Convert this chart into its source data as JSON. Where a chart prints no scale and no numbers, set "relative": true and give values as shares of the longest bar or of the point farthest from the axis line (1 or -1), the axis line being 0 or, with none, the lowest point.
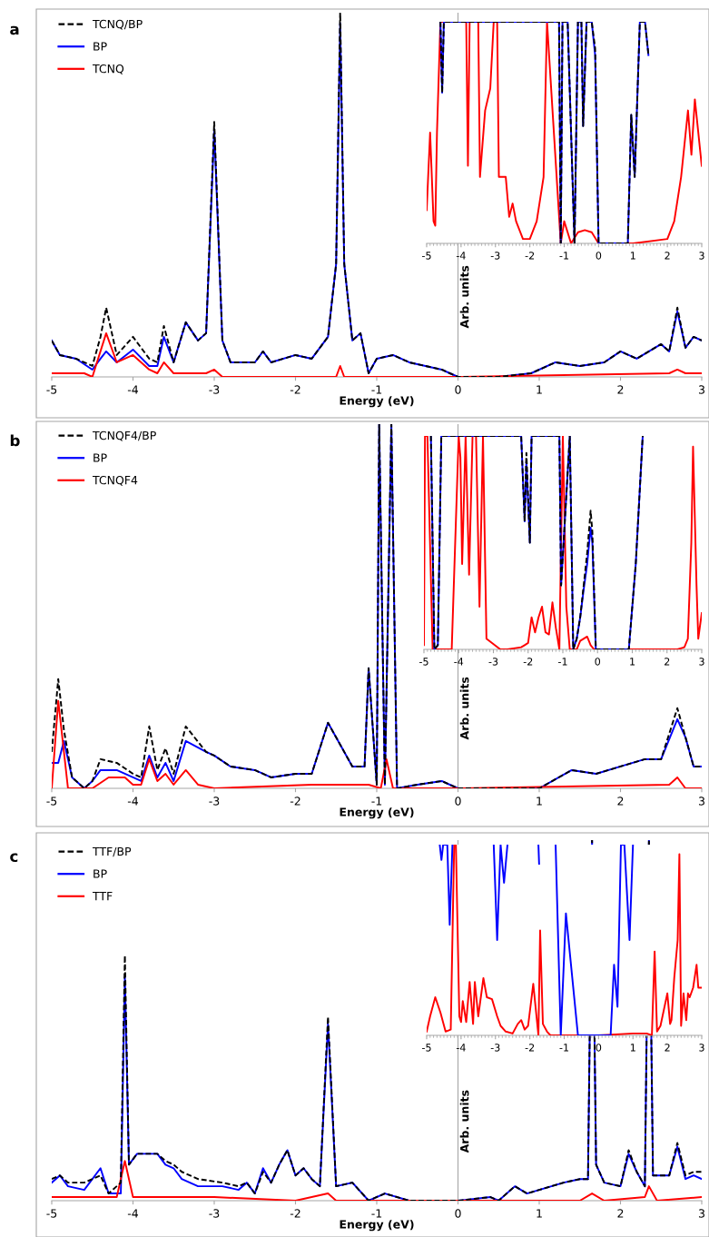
{
  "chart_data": [
    {
      "type": "line",
      "relative": true,
      "xlabel": "Energy (eV)",
      "ylabel": "Arb. units",
      "annotations": [
        "a"
      ],
      "xlim": [
        -5,
        3
      ],
      "xticks": [
        -5,
        -4,
        -3,
        -2,
        -1,
        0,
        1,
        2,
        3
      ],
      "tick_labels": "x",
      "ref_lines": [
        {
          "axis": "x",
          "value": 0,
          "color": "#a6a6a6"
        }
      ],
      "legend": "top left",
      "grid": false,
      "marker": "none",
      "series": [
        {
          "name": "TCNQ/BP",
          "color": "#000000",
          "line_style": "dashed",
          "x": [
            -5,
            -4.9,
            -4.7,
            -4.5,
            -4.4,
            -4.33,
            -4.2,
            -4.0,
            -3.8,
            -3.7,
            -3.62,
            -3.5,
            -3.35,
            -3.2,
            -3.1,
            -3.0,
            -2.9,
            -2.8,
            -2.5,
            -2.4,
            -2.3,
            -2.0,
            -1.8,
            -1.6,
            -1.5,
            -1.45,
            -1.4,
            -1.3,
            -1.2,
            -1.1,
            -1.0,
            -0.8,
            -0.6,
            -0.4,
            -0.2,
            -0.1,
            0,
            0.5,
            0.9,
            1.2,
            1.5,
            1.8,
            2.0,
            2.2,
            2.5,
            2.6,
            2.7,
            2.8,
            2.9,
            3.0
          ],
          "values": [
            0.1,
            0.06,
            0.05,
            0.03,
            0.11,
            0.19,
            0.06,
            0.11,
            0.05,
            0.04,
            0.14,
            0.04,
            0.15,
            0.1,
            0.12,
            0.7,
            0.1,
            0.04,
            0.04,
            0.07,
            0.04,
            0.06,
            0.05,
            0.11,
            0.31,
            1.0,
            0.31,
            0.1,
            0.12,
            0.01,
            0.05,
            0.06,
            0.04,
            0.03,
            0.02,
            0.01,
            0,
            0,
            0.01,
            0.04,
            0.03,
            0.04,
            0.07,
            0.05,
            0.09,
            0.07,
            0.19,
            0.08,
            0.11,
            0.1
          ]
        },
        {
          "name": "BP",
          "color": "#0000ff",
          "line_style": "solid",
          "x": [
            -5,
            -4.9,
            -4.7,
            -4.5,
            -4.4,
            -4.33,
            -4.2,
            -4.0,
            -3.8,
            -3.7,
            -3.62,
            -3.5,
            -3.35,
            -3.2,
            -3.1,
            -3.0,
            -2.9,
            -2.8,
            -2.5,
            -2.4,
            -2.3,
            -2.0,
            -1.8,
            -1.6,
            -1.5,
            -1.45,
            -1.4,
            -1.3,
            -1.2,
            -1.1,
            -1.0,
            -0.8,
            -0.6,
            -0.4,
            -0.2,
            -0.1,
            0,
            0.5,
            0.9,
            1.2,
            1.5,
            1.8,
            2.0,
            2.2,
            2.5,
            2.6,
            2.7,
            2.8,
            2.9,
            3.0
          ],
          "values": [
            0.1,
            0.06,
            0.05,
            0.02,
            0.05,
            0.07,
            0.04,
            0.075,
            0.03,
            0.03,
            0.11,
            0.04,
            0.15,
            0.1,
            0.12,
            0.68,
            0.1,
            0.04,
            0.04,
            0.07,
            0.04,
            0.06,
            0.05,
            0.11,
            0.31,
            0.97,
            0.31,
            0.1,
            0.12,
            0.01,
            0.05,
            0.06,
            0.04,
            0.03,
            0.02,
            0.01,
            0,
            0,
            0.01,
            0.04,
            0.03,
            0.04,
            0.07,
            0.05,
            0.09,
            0.07,
            0.18,
            0.08,
            0.11,
            0.1
          ]
        },
        {
          "name": "TCNQ",
          "color": "#ff0000",
          "line_style": "solid",
          "x": [
            -5,
            -4.6,
            -4.5,
            -4.33,
            -4.2,
            -4.0,
            -3.8,
            -3.7,
            -3.62,
            -3.5,
            -3.1,
            -3.0,
            -2.9,
            -1.5,
            -1.45,
            -1.4,
            0,
            2.6,
            2.7,
            2.8,
            3.0
          ],
          "values": [
            0.01,
            0.01,
            0.0,
            0.12,
            0.04,
            0.06,
            0.02,
            0.01,
            0.04,
            0.01,
            0.01,
            0.02,
            0.0,
            0.0,
            0.03,
            0.0,
            0.0,
            0.01,
            0.02,
            0.01,
            0.01
          ]
        }
      ]
    },
    {
      "type": "line",
      "relative": true,
      "xlim": [
        -5,
        3
      ],
      "xticks": [
        -5,
        -4,
        -3,
        -2,
        -1,
        0,
        1,
        2,
        3
      ],
      "tick_labels": "x",
      "grid": false,
      "marker": "none",
      "series": [
        {
          "color": "#ff0000",
          "line_style": "solid",
          "x": [
            -5,
            -4.9,
            -4.8,
            -4.75,
            -4.7,
            -4.6,
            -3.85,
            -3.8,
            -3.75,
            -3.5,
            -3.45,
            -3.3,
            -3.15,
            -3.05,
            -2.95,
            -2.9,
            -2.85,
            -2.7,
            -2.6,
            -2.5,
            -2.4,
            -2.2,
            -2.0,
            -1.8,
            -1.6,
            -1.5,
            -1.1,
            -1.0,
            -0.8,
            -0.6,
            -0.4,
            -0.2,
            0,
            1.0,
            2.0,
            2.2,
            2.4,
            2.6,
            2.7,
            2.8,
            3.0
          ],
          "values": [
            0.15,
            0.5,
            0.1,
            0.08,
            0.5,
            1.0,
            1.0,
            0.35,
            1.0,
            1.0,
            0.3,
            0.6,
            0.7,
            1.0,
            1.0,
            0.3,
            0.3,
            0.3,
            0.12,
            0.18,
            0.1,
            0.02,
            0.02,
            0.1,
            0.3,
            1.0,
            0.0,
            0.1,
            0.0,
            0.05,
            0.06,
            0.05,
            0.0,
            0.0,
            0.02,
            0.1,
            0.3,
            0.6,
            0.4,
            0.65,
            0.35
          ]
        },
        {
          "color": "#000000",
          "line_style": "dashed",
          "x": [
            -4.6,
            -4.55,
            -4.5,
            -1.15,
            -1.1,
            -1.05,
            -0.9,
            -0.7,
            -0.6,
            -0.5,
            -0.45,
            -0.35,
            -0.2,
            -0.1,
            0,
            0.85,
            0.95,
            1.05,
            1.2,
            1.35,
            1.45
          ],
          "values": [
            1.0,
            0.68,
            1.0,
            1.0,
            0.0,
            1.0,
            1.0,
            0.0,
            1.0,
            1.0,
            0.53,
            1.0,
            1.0,
            0.88,
            0.0,
            0.0,
            0.58,
            0.3,
            1.0,
            1.0,
            0.85
          ]
        },
        {
          "color": "#0000ff",
          "line_style": "solid",
          "x": [
            -4.6,
            -4.55,
            -4.5,
            -1.15,
            -1.1,
            -1.05,
            -0.9,
            -0.7,
            -0.6,
            -0.5,
            -0.45,
            -0.35,
            -0.2,
            -0.1,
            0,
            0.85,
            0.95,
            1.05,
            1.2,
            1.35,
            1.45
          ],
          "values": [
            1.0,
            0.68,
            1.0,
            1.0,
            0.0,
            1.0,
            1.0,
            0.0,
            1.0,
            1.0,
            0.53,
            1.0,
            1.0,
            0.85,
            0.0,
            0.0,
            0.58,
            0.3,
            1.0,
            1.0,
            0.85
          ]
        }
      ]
    },
    {
      "type": "line",
      "relative": true,
      "xlabel": "Energy (eV)",
      "ylabel": "Arb. units",
      "annotations": [
        "b"
      ],
      "xlim": [
        -5,
        3
      ],
      "xticks": [
        -5,
        -4,
        -3,
        -2,
        -1,
        0,
        1,
        2,
        3
      ],
      "tick_labels": "x",
      "ref_lines": [
        {
          "axis": "x",
          "value": 0,
          "color": "#a6a6a6"
        }
      ],
      "legend": "top left",
      "grid": false,
      "marker": "none",
      "series": [
        {
          "name": "TCNQF4/BP",
          "color": "#000000",
          "line_style": "dashed",
          "x": [
            -5,
            -4.92,
            -4.85,
            -4.75,
            -4.6,
            -4.5,
            -4.4,
            -4.2,
            -4.0,
            -3.9,
            -3.8,
            -3.7,
            -3.6,
            -3.5,
            -3.35,
            -3.1,
            -3.0,
            -2.8,
            -2.5,
            -2.3,
            -2.0,
            -1.8,
            -1.6,
            -1.3,
            -1.15,
            -1.1,
            -1.0,
            -0.97,
            -0.9,
            -0.82,
            -0.75,
            -0.5,
            -0.2,
            -0.1,
            0,
            1.0,
            1.4,
            1.7,
            2.0,
            2.3,
            2.5,
            2.7,
            2.8,
            2.9,
            3.0
          ],
          "values": [
            0.1,
            0.3,
            0.16,
            0.03,
            0.0,
            0.02,
            0.08,
            0.07,
            0.04,
            0.03,
            0.17,
            0.05,
            0.11,
            0.04,
            0.17,
            0.1,
            0.09,
            0.06,
            0.05,
            0.03,
            0.04,
            0.04,
            0.18,
            0.06,
            0.06,
            0.33,
            0.01,
            1.0,
            0.01,
            1.0,
            0.0,
            0.01,
            0.02,
            0.01,
            0.0,
            0.0,
            0.05,
            0.04,
            0.06,
            0.08,
            0.08,
            0.22,
            0.14,
            0.06,
            0.06
          ]
        },
        {
          "name": "BP",
          "color": "#0000ff",
          "line_style": "solid",
          "x": [
            -5,
            -4.92,
            -4.85,
            -4.75,
            -4.6,
            -4.5,
            -4.4,
            -4.2,
            -4.0,
            -3.9,
            -3.8,
            -3.7,
            -3.6,
            -3.5,
            -3.35,
            -3.1,
            -3.0,
            -2.8,
            -2.5,
            -2.3,
            -2.0,
            -1.8,
            -1.6,
            -1.3,
            -1.15,
            -1.1,
            -1.0,
            -0.97,
            -0.9,
            -0.82,
            -0.75,
            -0.5,
            -0.2,
            -0.1,
            0,
            1.0,
            1.4,
            1.7,
            2.0,
            2.3,
            2.5,
            2.7,
            2.8,
            2.9,
            3.0
          ],
          "values": [
            0.07,
            0.07,
            0.13,
            0.03,
            0.0,
            0.02,
            0.05,
            0.05,
            0.03,
            0.02,
            0.09,
            0.03,
            0.07,
            0.02,
            0.13,
            0.1,
            0.09,
            0.06,
            0.05,
            0.03,
            0.04,
            0.04,
            0.18,
            0.06,
            0.06,
            0.33,
            0.01,
            1.0,
            0.01,
            1.0,
            0.0,
            0.01,
            0.02,
            0.01,
            0.0,
            0.0,
            0.05,
            0.04,
            0.06,
            0.08,
            0.08,
            0.19,
            0.14,
            0.06,
            0.06
          ]
        },
        {
          "name": "TCNQF4",
          "color": "#ff0000",
          "line_style": "solid",
          "x": [
            -5,
            -4.92,
            -4.8,
            -4.5,
            -4.3,
            -4.1,
            -4.0,
            -3.9,
            -3.8,
            -3.7,
            -3.6,
            -3.5,
            -3.35,
            -3.2,
            -3.0,
            -1.8,
            -1.1,
            -0.95,
            -0.88,
            -0.8,
            0,
            2.6,
            2.7,
            2.8,
            3.0
          ],
          "values": [
            0.0,
            0.24,
            0.0,
            0.0,
            0.03,
            0.03,
            0.01,
            0.01,
            0.08,
            0.02,
            0.04,
            0.01,
            0.05,
            0.01,
            0.0,
            0.01,
            0.01,
            0.0,
            0.08,
            0.0,
            0.0,
            0.01,
            0.03,
            0.0,
            0.0
          ]
        }
      ]
    },
    {
      "type": "line",
      "relative": true,
      "xlim": [
        -5,
        3
      ],
      "xticks": [
        -5,
        -4,
        -3,
        -2,
        -1,
        0,
        1,
        2,
        3
      ],
      "tick_labels": "x",
      "grid": false,
      "marker": "none",
      "series": [
        {
          "color": "#ff0000",
          "line_style": "solid",
          "x": [
            -5,
            -4.97,
            -4.9,
            -4.75,
            -4.6,
            -4.4,
            -4.2,
            -4.0,
            -3.95,
            -3.9,
            -3.8,
            -3.7,
            -3.6,
            -3.5,
            -3.4,
            -3.3,
            -3.2,
            -2.8,
            -2.6,
            -2.2,
            -2.1,
            -2.0,
            -1.9,
            -1.8,
            -1.7,
            -1.6,
            -1.5,
            -1.4,
            -1.3,
            -1.2,
            -1.1,
            -1.0,
            -0.9,
            -0.8,
            -0.6,
            -0.5,
            -0.3,
            -0.2,
            -0.1,
            0,
            2.3,
            2.5,
            2.6,
            2.7,
            2.75,
            2.85,
            2.9,
            3.0
          ],
          "values": [
            0.02,
            1.0,
            1.0,
            0.0,
            0.0,
            0.0,
            0.0,
            1.0,
            0.9,
            0.4,
            1.0,
            0.35,
            1.0,
            1.0,
            0.2,
            1.0,
            0.05,
            0.0,
            0.0,
            0.01,
            0.02,
            0.03,
            0.15,
            0.08,
            0.15,
            0.2,
            0.08,
            0.07,
            0.22,
            0.1,
            0.0,
            1.0,
            0.2,
            0.0,
            0.0,
            0.04,
            0.06,
            0.02,
            0.0,
            0.0,
            0.0,
            0.01,
            0.05,
            0.5,
            0.95,
            0.3,
            0.05,
            0.17
          ]
        },
        {
          "color": "#000000",
          "line_style": "dashed",
          "x": [
            -4.8,
            -4.7,
            -4.6,
            -4.55,
            -4.5,
            -2.2,
            -2.1,
            -2.05,
            -1.95,
            -1.9,
            -1.1,
            -1.05,
            -0.8,
            -0.7,
            -0.6,
            -0.5,
            -0.4,
            -0.3,
            -0.2,
            -0.15,
            -0.05,
            0.9,
            1.1,
            1.3
          ],
          "values": [
            1.0,
            0.0,
            0.02,
            0.5,
            1.0,
            1.0,
            0.6,
            0.92,
            0.5,
            1.0,
            1.0,
            0.3,
            1.0,
            0.0,
            0.05,
            0.15,
            0.3,
            0.45,
            0.65,
            0.55,
            0.0,
            0.0,
            0.4,
            1.0
          ]
        },
        {
          "color": "#0000ff",
          "line_style": "solid",
          "x": [
            -4.8,
            -4.7,
            -4.6,
            -4.55,
            -4.5,
            -2.2,
            -2.1,
            -2.05,
            -1.95,
            -1.9,
            -1.1,
            -1.05,
            -0.8,
            -0.7,
            -0.6,
            -0.5,
            -0.4,
            -0.3,
            -0.2,
            -0.15,
            -0.05,
            0.9,
            1.1,
            1.3
          ],
          "values": [
            1.0,
            0.0,
            0.02,
            0.5,
            1.0,
            1.0,
            0.6,
            0.88,
            0.5,
            1.0,
            1.0,
            0.3,
            1.0,
            0.0,
            0.05,
            0.15,
            0.28,
            0.4,
            0.57,
            0.5,
            0.0,
            0.0,
            0.4,
            1.0
          ]
        }
      ]
    },
    {
      "type": "line",
      "relative": true,
      "xlabel": "Energy (eV)",
      "ylabel": "Arb. units",
      "annotations": [
        "c"
      ],
      "xlim": [
        -5,
        3
      ],
      "xticks": [
        -5,
        -4,
        -3,
        -2,
        -1,
        0,
        1,
        2,
        3
      ],
      "tick_labels": "x",
      "ref_lines": [
        {
          "axis": "x",
          "value": 0,
          "color": "#a6a6a6"
        }
      ],
      "legend": "top left",
      "grid": false,
      "marker": "none",
      "series": [
        {
          "name": "TTF/BP",
          "color": "#000000",
          "line_style": "dashed",
          "x": [
            -5,
            -4.9,
            -4.8,
            -4.6,
            -4.4,
            -4.3,
            -4.15,
            -4.1,
            -4.05,
            -3.95,
            -3.8,
            -3.7,
            -3.6,
            -3.5,
            -3.4,
            -3.2,
            -2.9,
            -2.7,
            -2.6,
            -2.5,
            -2.4,
            -2.3,
            -2.2,
            -2.1,
            -2.0,
            -1.9,
            -1.8,
            -1.7,
            -1.6,
            -1.5,
            -1.3,
            -1.1,
            -0.9,
            -0.6,
            -0.5,
            0,
            0.4,
            0.5,
            0.7,
            0.85,
            1.0,
            1.3,
            1.5,
            1.6,
            1.65,
            1.7,
            1.8,
            2.0,
            2.1,
            2.2,
            2.3,
            2.35,
            2.4,
            2.5,
            2.6,
            2.7,
            2.8,
            2.9,
            3.0
          ],
          "values": [
            0.06,
            0.07,
            0.05,
            0.05,
            0.07,
            0.02,
            0.05,
            0.68,
            0.1,
            0.13,
            0.13,
            0.13,
            0.11,
            0.1,
            0.08,
            0.06,
            0.05,
            0.04,
            0.05,
            0.02,
            0.08,
            0.05,
            0.1,
            0.14,
            0.07,
            0.09,
            0.06,
            0.04,
            0.51,
            0.04,
            0.05,
            0.0,
            0.02,
            0.0,
            0.0,
            0.0,
            0.01,
            0.0,
            0.04,
            0.02,
            0.03,
            0.05,
            0.06,
            0.06,
            1.0,
            0.1,
            0.05,
            0.04,
            0.14,
            0.08,
            0.04,
            1.0,
            0.07,
            0.07,
            0.07,
            0.16,
            0.07,
            0.08,
            0.08
          ]
        },
        {
          "name": "BP",
          "color": "#0000ff",
          "line_style": "solid",
          "x": [
            -5,
            -4.9,
            -4.8,
            -4.6,
            -4.4,
            -4.3,
            -4.15,
            -4.1,
            -4.05,
            -3.95,
            -3.8,
            -3.7,
            -3.6,
            -3.5,
            -3.4,
            -3.2,
            -2.9,
            -2.7,
            -2.6,
            -2.5,
            -2.4,
            -2.3,
            -2.2,
            -2.1,
            -2.0,
            -1.9,
            -1.8,
            -1.7,
            -1.6,
            -1.5,
            -1.3,
            -1.1,
            -0.9,
            -0.6,
            -0.5,
            0,
            0.4,
            0.5,
            0.7,
            0.85,
            1.0,
            1.3,
            1.5,
            1.6,
            1.65,
            1.7,
            1.8,
            2.0,
            2.1,
            2.2,
            2.3,
            2.35,
            2.4,
            2.5,
            2.6,
            2.7,
            2.8,
            2.9,
            3.0
          ],
          "values": [
            0.05,
            0.07,
            0.04,
            0.03,
            0.09,
            0.02,
            0.02,
            0.62,
            0.1,
            0.13,
            0.13,
            0.13,
            0.1,
            0.09,
            0.06,
            0.04,
            0.04,
            0.03,
            0.05,
            0.02,
            0.09,
            0.05,
            0.1,
            0.14,
            0.07,
            0.09,
            0.06,
            0.04,
            0.49,
            0.04,
            0.05,
            0.0,
            0.02,
            0.0,
            0.0,
            0.0,
            0.01,
            0.0,
            0.04,
            0.02,
            0.03,
            0.05,
            0.06,
            0.06,
            1.0,
            0.1,
            0.05,
            0.04,
            0.13,
            0.08,
            0.04,
            1.0,
            0.07,
            0.07,
            0.07,
            0.15,
            0.06,
            0.07,
            0.06
          ]
        },
        {
          "name": "TTF",
          "color": "#ff0000",
          "line_style": "solid",
          "x": [
            -5,
            -4.6,
            -4.2,
            -4.1,
            -4.0,
            -3.5,
            -3.0,
            -2.0,
            -1.6,
            -1.5,
            0,
            1.5,
            1.65,
            1.8,
            2.3,
            2.35,
            2.45,
            3.0
          ],
          "values": [
            0.01,
            0.01,
            0.01,
            0.11,
            0.01,
            0.01,
            0.01,
            0.0,
            0.02,
            0.0,
            0.0,
            0.0,
            0.02,
            0.0,
            0.01,
            0.04,
            0.0,
            0.01
          ]
        }
      ]
    },
    {
      "type": "line",
      "relative": true,
      "xlim": [
        -5,
        3
      ],
      "xticks": [
        -5,
        -4,
        -3,
        -2,
        -1,
        0,
        1,
        2,
        3
      ],
      "tick_labels": "x",
      "grid": false,
      "marker": "none",
      "series": [
        {
          "color": "#ff0000",
          "line_style": "solid",
          "x": [
            -5,
            -4.9,
            -4.75,
            -4.6,
            -4.45,
            -4.3,
            -4.2,
            -4.15,
            -4.05,
            -4.0,
            -3.95,
            -3.85,
            -3.75,
            -3.65,
            -3.6,
            -3.5,
            -3.35,
            -3.25,
            -3.1,
            -2.95,
            -2.85,
            -2.7,
            -2.5,
            -2.35,
            -2.25,
            -2.15,
            -2.05,
            -1.9,
            -1.75,
            -1.7,
            -1.62,
            -1.5,
            -1.4,
            -1.2,
            0,
            1.0,
            1.4,
            1.55,
            1.63,
            1.7,
            1.8,
            2.0,
            2.08,
            2.12,
            2.2,
            2.3,
            2.35,
            2.4,
            2.47,
            2.55,
            2.6,
            2.65,
            2.75,
            2.85,
            2.9,
            3.0
          ],
          "values": [
            0.02,
            0.1,
            0.2,
            0.12,
            0.02,
            0.03,
            1.0,
            1.0,
            0.1,
            0.07,
            0.18,
            0.07,
            0.28,
            0.06,
            0.28,
            0.1,
            0.3,
            0.2,
            0.19,
            0.1,
            0.05,
            0.02,
            0.01,
            0.06,
            0.08,
            0.03,
            0.05,
            0.27,
            0.0,
            0.55,
            0.06,
            0.02,
            0.0,
            0.0,
            0.0,
            0.01,
            0.01,
            0.0,
            0.44,
            0.02,
            0.05,
            0.22,
            0.06,
            0.08,
            0.3,
            0.5,
            0.95,
            0.05,
            0.22,
            0.08,
            0.22,
            0.2,
            0.25,
            0.37,
            0.25,
            0.25
          ]
        },
        {
          "color": "#0000ff",
          "line_style": "solid",
          "x": [
            -4.62,
            -4.57,
            -4.52,
            -4.4,
            -4.33,
            -4.25,
            -4.2,
            -3.05,
            -2.95,
            -2.85,
            -2.75,
            -2.65,
            -2.6,
            -1.75,
            -1.73,
            -1.7,
            -1.25,
            -1.1,
            -0.95,
            -0.6,
            0.3,
            0.35,
            0.45,
            0.55,
            0.65,
            0.75,
            0.9,
            1.0
          ],
          "values": [
            1.0,
            0.92,
            1.0,
            1.0,
            0.58,
            1.0,
            null,
            1.0,
            0.5,
            1.0,
            0.8,
            1.0,
            null,
            1.0,
            0.9,
            null,
            1.0,
            0.0,
            0.64,
            0.0,
            0.0,
            0.0,
            0.37,
            0.15,
            1.0,
            1.0,
            0.5,
            1.0
          ]
        }
      ]
    }
  ]
}
